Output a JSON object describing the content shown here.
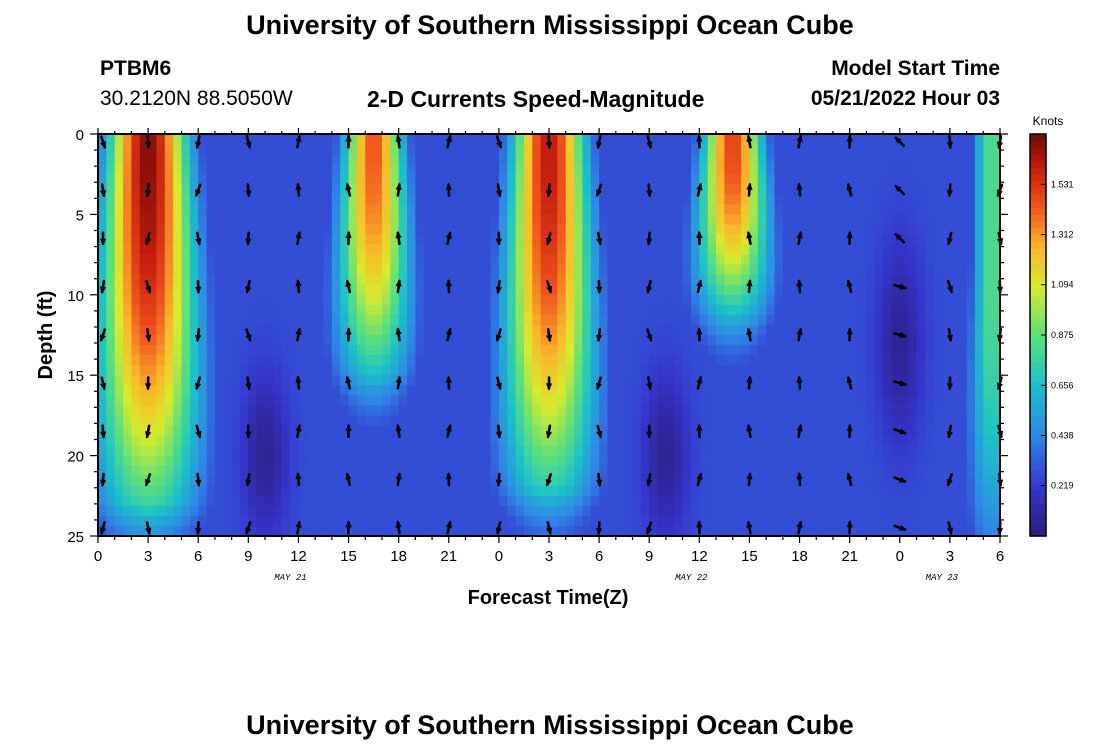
{
  "header": {
    "title": "University of Southern Mississippi Ocean Cube",
    "station": "PTBM6",
    "coordinates": "30.2120N  88.5050W",
    "subtitle": "2-D Currents Speed-Magnitude",
    "model_label": "Model Start Time",
    "model_time": "05/21/2022 Hour 03"
  },
  "footer": {
    "title": "University of Southern Mississippi Ocean Cube"
  },
  "chart_data": {
    "type": "heatmap",
    "title": "2-D Currents Speed-Magnitude",
    "xlabel": "Forecast Time(Z)",
    "ylabel": "Depth (ft)",
    "x_ticks": [
      "0",
      "3",
      "6",
      "9",
      "12",
      "15",
      "18",
      "21",
      "0",
      "3",
      "6",
      "9",
      "12",
      "15",
      "18",
      "21",
      "0",
      "3",
      "6"
    ],
    "x_range_hours": [
      0,
      54
    ],
    "date_labels": [
      {
        "label": "MAY 21",
        "hour": 12
      },
      {
        "label": "MAY 22",
        "hour": 36
      },
      {
        "label": "MAY 23",
        "hour": 51
      }
    ],
    "y_ticks": [
      0,
      5,
      10,
      15,
      20,
      25
    ],
    "ylim": [
      0,
      25
    ],
    "colorbar": {
      "label": "Knots",
      "range": [
        0,
        1.75
      ],
      "ticks": [
        "0.219",
        "0.438",
        "0.656",
        "0.875",
        "1.094",
        "1.312",
        "1.531"
      ]
    },
    "speed_features": [
      {
        "hour": 3,
        "depth": 0,
        "peak": 1.72,
        "time_spread": 2.4,
        "depth_extent": 23
      },
      {
        "hour": 16.5,
        "depth": 0,
        "peak": 1.45,
        "time_spread": 1.8,
        "depth_extent": 15
      },
      {
        "hour": 27,
        "depth": 0,
        "peak": 1.62,
        "time_spread": 2.2,
        "depth_extent": 22
      },
      {
        "hour": 38,
        "depth": 0,
        "peak": 1.5,
        "time_spread": 1.8,
        "depth_extent": 11
      },
      {
        "hour": 53.5,
        "depth": 8,
        "peak": 0.85,
        "time_spread": 1.2,
        "depth_extent": 18
      }
    ],
    "arrow_rows_depth_ft": [
      0.3,
      3.3,
      6.3,
      9.3,
      12.3,
      15.3,
      18.3,
      21.3,
      24.3
    ],
    "arrow_columns_hour": [
      0.3,
      3,
      6,
      9,
      12,
      15,
      18,
      21,
      24,
      27,
      30,
      33,
      36,
      39,
      42,
      45,
      48,
      51,
      54
    ]
  },
  "colors": {
    "background": "#ffffff",
    "arrow": "#000000"
  }
}
